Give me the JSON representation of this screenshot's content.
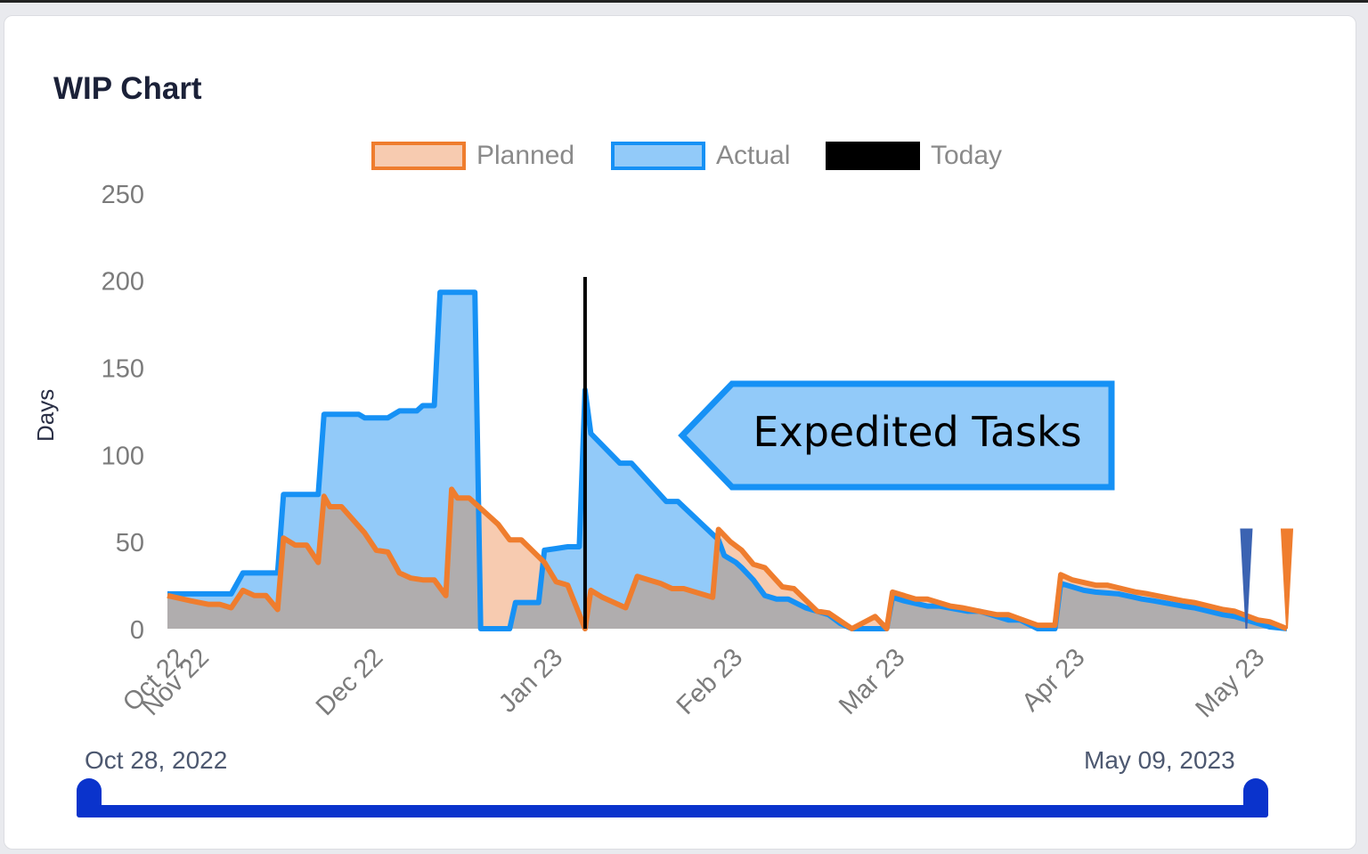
{
  "card": {
    "title": "WIP Chart"
  },
  "legend": [
    {
      "label": "Planned",
      "fill": "#f7cbb0",
      "stroke": "#ef7d2e"
    },
    {
      "label": "Actual",
      "fill": "#92caf9",
      "stroke": "#1691f5"
    },
    {
      "label": "Today",
      "fill": "#000000",
      "stroke": "#000000"
    }
  ],
  "annotation": {
    "text": "Expedited Tasks",
    "fill": "#92caf9",
    "stroke": "#1691f5"
  },
  "range_slider": {
    "start_label": "Oct 28, 2022",
    "end_label": "May 09, 2023",
    "color": "#0a33cc"
  },
  "chart_data": {
    "type": "area",
    "title": "WIP Chart",
    "xlabel": "",
    "ylabel": "Days",
    "ylim": [
      0,
      250
    ],
    "yticks": [
      0,
      50,
      100,
      150,
      200,
      250
    ],
    "x_tick_labels": [
      "Oct 22",
      "Nov 22",
      "Dec 22",
      "Jan 23",
      "Feb 23",
      "Mar 23",
      "Apr 23",
      "May 23"
    ],
    "x_tick_days": [
      0,
      4,
      34,
      65,
      96,
      124,
      155,
      186
    ],
    "x_range": [
      "Oct 28, 2022",
      "May 09, 2023"
    ],
    "grid": false,
    "legend_position": "top",
    "today_day": 72,
    "overlap_fill": "#b0adae",
    "series": [
      {
        "name": "Actual",
        "points_day_value": [
          [
            0,
            20
          ],
          [
            11,
            20
          ],
          [
            13,
            32
          ],
          [
            19,
            32
          ],
          [
            20,
            77
          ],
          [
            26,
            77
          ],
          [
            27,
            123
          ],
          [
            33,
            123
          ],
          [
            34,
            121
          ],
          [
            38,
            121
          ],
          [
            40,
            125
          ],
          [
            43,
            125
          ],
          [
            44,
            128
          ],
          [
            46,
            128
          ],
          [
            47,
            193
          ],
          [
            53,
            193
          ],
          [
            54,
            0
          ],
          [
            59,
            0
          ],
          [
            60,
            15
          ],
          [
            64,
            15
          ],
          [
            65,
            45
          ],
          [
            67,
            46
          ],
          [
            69,
            47
          ],
          [
            71,
            47
          ],
          [
            72,
            137
          ],
          [
            73,
            112
          ],
          [
            78,
            95
          ],
          [
            80,
            95
          ],
          [
            86,
            73
          ],
          [
            88,
            73
          ],
          [
            95,
            51
          ],
          [
            96,
            42
          ],
          [
            98,
            38
          ],
          [
            99,
            35
          ],
          [
            101,
            28
          ],
          [
            103,
            19
          ],
          [
            105,
            17
          ],
          [
            107,
            17
          ],
          [
            110,
            12
          ],
          [
            112,
            10
          ],
          [
            114,
            8
          ],
          [
            116,
            3
          ],
          [
            118,
            0
          ],
          [
            124,
            0
          ],
          [
            125,
            18
          ],
          [
            127,
            16
          ],
          [
            131,
            13
          ],
          [
            133,
            13
          ],
          [
            138,
            10
          ],
          [
            140,
            10
          ],
          [
            145,
            5
          ],
          [
            147,
            5
          ],
          [
            150,
            0
          ],
          [
            153,
            0
          ],
          [
            154,
            26
          ],
          [
            158,
            22
          ],
          [
            160,
            21
          ],
          [
            164,
            20
          ],
          [
            168,
            17
          ],
          [
            170,
            16
          ],
          [
            175,
            13
          ],
          [
            177,
            12
          ],
          [
            182,
            8
          ],
          [
            184,
            7
          ],
          [
            190,
            1
          ],
          [
            193,
            0
          ]
        ]
      },
      {
        "name": "Planned",
        "points_day_value": [
          [
            0,
            19
          ],
          [
            4,
            16
          ],
          [
            7,
            14
          ],
          [
            9,
            14
          ],
          [
            11,
            12
          ],
          [
            13,
            22
          ],
          [
            15,
            19
          ],
          [
            17,
            19
          ],
          [
            19,
            11
          ],
          [
            20,
            52
          ],
          [
            22,
            48
          ],
          [
            24,
            48
          ],
          [
            26,
            38
          ],
          [
            27,
            76
          ],
          [
            28,
            70
          ],
          [
            30,
            70
          ],
          [
            34,
            55
          ],
          [
            36,
            45
          ],
          [
            38,
            44
          ],
          [
            40,
            32
          ],
          [
            42,
            29
          ],
          [
            44,
            28
          ],
          [
            46,
            28
          ],
          [
            48,
            19
          ],
          [
            49,
            80
          ],
          [
            50,
            75
          ],
          [
            52,
            75
          ],
          [
            57,
            60
          ],
          [
            59,
            51
          ],
          [
            61,
            51
          ],
          [
            65,
            38
          ],
          [
            67,
            27
          ],
          [
            69,
            25
          ],
          [
            72,
            0
          ],
          [
            73,
            22
          ],
          [
            75,
            18
          ],
          [
            77,
            15
          ],
          [
            79,
            12
          ],
          [
            81,
            30
          ],
          [
            83,
            28
          ],
          [
            85,
            26
          ],
          [
            87,
            23
          ],
          [
            89,
            23
          ],
          [
            94,
            18
          ],
          [
            95,
            57
          ],
          [
            97,
            50
          ],
          [
            99,
            45
          ],
          [
            101,
            37
          ],
          [
            103,
            35
          ],
          [
            106,
            24
          ],
          [
            108,
            23
          ],
          [
            112,
            10
          ],
          [
            114,
            9
          ],
          [
            118,
            0
          ],
          [
            122,
            7
          ],
          [
            124,
            0
          ],
          [
            125,
            21
          ],
          [
            127,
            19
          ],
          [
            129,
            17
          ],
          [
            131,
            17
          ],
          [
            135,
            13
          ],
          [
            137,
            12
          ],
          [
            140,
            10
          ],
          [
            143,
            8
          ],
          [
            145,
            8
          ],
          [
            150,
            2
          ],
          [
            153,
            2
          ],
          [
            154,
            31
          ],
          [
            156,
            28
          ],
          [
            160,
            25
          ],
          [
            162,
            25
          ],
          [
            167,
            21
          ],
          [
            169,
            20
          ],
          [
            175,
            16
          ],
          [
            177,
            15
          ],
          [
            182,
            11
          ],
          [
            184,
            10
          ],
          [
            188,
            5
          ],
          [
            190,
            4
          ],
          [
            193,
            0
          ]
        ]
      }
    ],
    "end_markers": [
      {
        "series": "Actual",
        "day": 186,
        "value": 57,
        "color": "#3b63b2"
      },
      {
        "series": "Planned",
        "day": 193,
        "value": 57,
        "color": "#ef7d2e"
      }
    ]
  }
}
